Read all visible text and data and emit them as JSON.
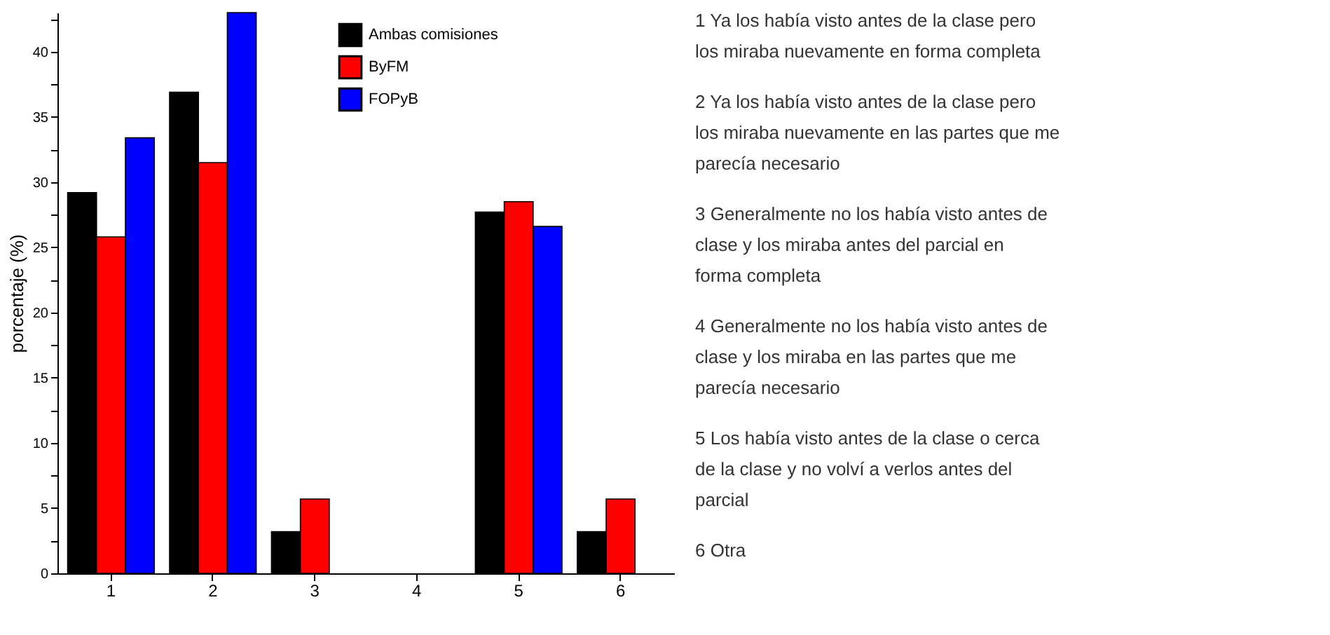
{
  "chart_data": {
    "type": "bar",
    "ylabel": "porcentaje (%)",
    "categories": [
      "1",
      "2",
      "3",
      "4",
      "5",
      "6"
    ],
    "series": [
      {
        "name": "Ambas comisiones",
        "color": "#000000",
        "values": [
          29.2,
          36.9,
          3.2,
          null,
          27.7,
          3.2
        ]
      },
      {
        "name": "ByFM",
        "color": "#ff0000",
        "values": [
          25.8,
          31.5,
          5.7,
          null,
          28.5,
          5.7
        ]
      },
      {
        "name": "FOPyB",
        "color": "#0000ff",
        "values": [
          33.4,
          43.0,
          null,
          null,
          26.6,
          null
        ]
      }
    ],
    "ylim": [
      0,
      43
    ],
    "yticks": [
      0,
      {
        "value": 2.5,
        "label": null
      },
      5,
      {
        "value": 7.5,
        "label": null
      },
      10,
      {
        "value": 12.5,
        "label": null
      },
      15,
      {
        "value": 17.5,
        "label": null
      },
      20,
      {
        "value": 22.5,
        "label": null
      },
      25,
      {
        "value": 27.5,
        "label": null
      },
      30,
      {
        "value": 32.5,
        "label": null
      },
      35,
      {
        "value": 37.5,
        "label": null
      },
      40,
      {
        "value": 42.5,
        "label": null
      }
    ],
    "grid": false,
    "legend": "top right",
    "annotations": [
      "1 Ya los había visto antes de la clase pero los miraba nuevamente en forma completa",
      "2 Ya los había visto antes de la clase pero los miraba nuevamente en las partes que me parecía necesario",
      "3 Generalmente no los había visto antes de clase y los miraba antes del parcial en forma completa",
      "4 Generalmente no los había visto antes de clase y los miraba en las partes que me parecía necesario",
      "5 Los había visto antes de la clase o cerca de la clase y no volví a verlos antes del parcial",
      "6 Otra"
    ]
  }
}
